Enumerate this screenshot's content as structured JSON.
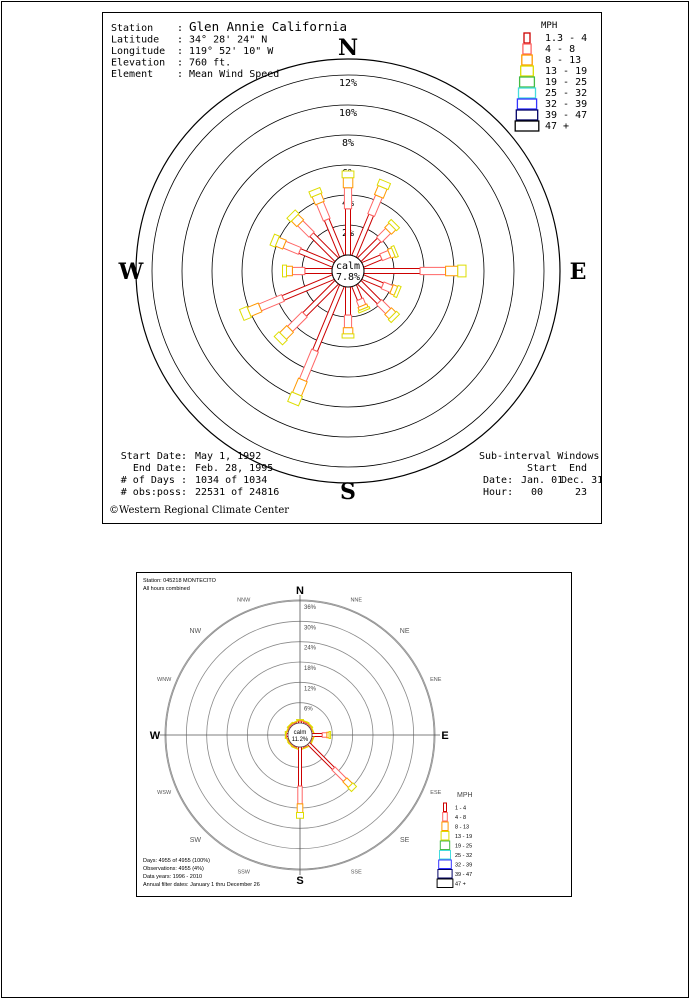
{
  "chart_data": [
    {
      "type": "wind-rose",
      "station_info": [
        {
          "label": "Station",
          "value": "Glen Annie California"
        },
        {
          "label": "Latitude",
          "value": "34° 28' 24\" N"
        },
        {
          "label": "Longitude",
          "value": "119° 52' 10\" W"
        },
        {
          "label": "Elevation",
          "value": "760 ft."
        },
        {
          "label": "Element",
          "value": "Mean Wind Speed"
        }
      ],
      "directions": [
        "N",
        "E",
        "S",
        "W"
      ],
      "radial_ticks": [
        "2%",
        "4%",
        "6%",
        "8%",
        "10%",
        "12%"
      ],
      "rmax": 12,
      "calm_label": "calm",
      "calm_value": "7.8%",
      "petals": [
        {
          "dir": 0,
          "total": 5.6
        },
        {
          "dir": 22.5,
          "total": 5.4
        },
        {
          "dir": 45,
          "total": 3.4
        },
        {
          "dir": 67.5,
          "total": 2.4
        },
        {
          "dir": 90,
          "total": 6.8
        },
        {
          "dir": 112.5,
          "total": 2.6
        },
        {
          "dir": 135,
          "total": 3.4
        },
        {
          "dir": 157.5,
          "total": 1.8
        },
        {
          "dir": 180,
          "total": 3.4
        },
        {
          "dir": 202.5,
          "total": 8.5
        },
        {
          "dir": 225,
          "total": 5.5
        },
        {
          "dir": 247.5,
          "total": 6.6
        },
        {
          "dir": 270,
          "total": 3.3
        },
        {
          "dir": 292.5,
          "total": 4.4
        },
        {
          "dir": 315,
          "total": 4.3
        },
        {
          "dir": 337.5,
          "total": 4.8
        }
      ],
      "legend": {
        "title": "MPH",
        "bins": [
          "1.3 - 4",
          "4 - 8",
          "8 - 13",
          "13 - 19",
          "19 - 25",
          "25 - 32",
          "32 - 39",
          "39 - 47",
          "47 +"
        ],
        "colors": [
          "#cc0000",
          "#ff6666",
          "#ff9900",
          "#dddd00",
          "#44bb44",
          "#44dddd",
          "#3333ff",
          "#000066",
          "#000000"
        ]
      },
      "period": [
        {
          "label": "Start Date:",
          "value": "May 1, 1992"
        },
        {
          "label": "End Date:",
          "value": "Feb. 28, 1995"
        },
        {
          "label": "# of Days :",
          "value": "1034 of 1034"
        },
        {
          "label": "# obs:poss:",
          "value": "22531 of 24816"
        }
      ],
      "credit": "©Western Regional Climate Center",
      "subinterval": {
        "title": "Sub-interval Windows",
        "start_label": "Start",
        "end_label": "End",
        "date_label": "Date:",
        "date_start": "Jan. 01",
        "date_end": "Dec. 31",
        "hour_label": "Hour:",
        "hour_start": "00",
        "hour_end": "23"
      }
    },
    {
      "type": "wind-rose",
      "header": [
        "Station: 045218 MONTECITO",
        "All hours combined"
      ],
      "directions": [
        "N",
        "NNE",
        "NE",
        "ENE",
        "E",
        "ESE",
        "SE",
        "SSE",
        "S",
        "SSW",
        "SW",
        "WSW",
        "W",
        "WNW",
        "NW",
        "NNW"
      ],
      "radial_ticks": [
        "6%",
        "12%",
        "18%",
        "24%",
        "30%",
        "36%"
      ],
      "rmax": 36,
      "calm_label": "calm",
      "calm_value": "11.2%",
      "petals": [
        {
          "dir": 0,
          "total": 1.0
        },
        {
          "dir": 22.5,
          "total": 0.8
        },
        {
          "dir": 45,
          "total": 0.7
        },
        {
          "dir": 67.5,
          "total": 0.5
        },
        {
          "dir": 90,
          "total": 5.5
        },
        {
          "dir": 112.5,
          "total": 0.5
        },
        {
          "dir": 135,
          "total": 19.0
        },
        {
          "dir": 157.5,
          "total": 0.6
        },
        {
          "dir": 180,
          "total": 21.0
        },
        {
          "dir": 202.5,
          "total": 0.6
        },
        {
          "dir": 225,
          "total": 0.5
        },
        {
          "dir": 247.5,
          "total": 0.5
        },
        {
          "dir": 270,
          "total": 0.8
        },
        {
          "dir": 292.5,
          "total": 0.5
        },
        {
          "dir": 315,
          "total": 0.7
        },
        {
          "dir": 337.5,
          "total": 0.6
        }
      ],
      "legend": {
        "title": "MPH",
        "bins": [
          "1 - 4",
          "4 - 8",
          "8 - 13",
          "13 - 19",
          "19 - 25",
          "25 - 32",
          "32 - 39",
          "39 - 47",
          "47 +"
        ],
        "colors": [
          "#cc0000",
          "#ff6666",
          "#ff9900",
          "#dddd00",
          "#44bb44",
          "#44dddd",
          "#3333ff",
          "#000066",
          "#000000"
        ]
      },
      "footer": [
        "Days: 4955 of 4955 (100%)",
        "Observations: 4955 (4%)",
        "Data years: 1996 - 2010",
        "Annual filter dates: January 1 thru December 26"
      ]
    }
  ]
}
